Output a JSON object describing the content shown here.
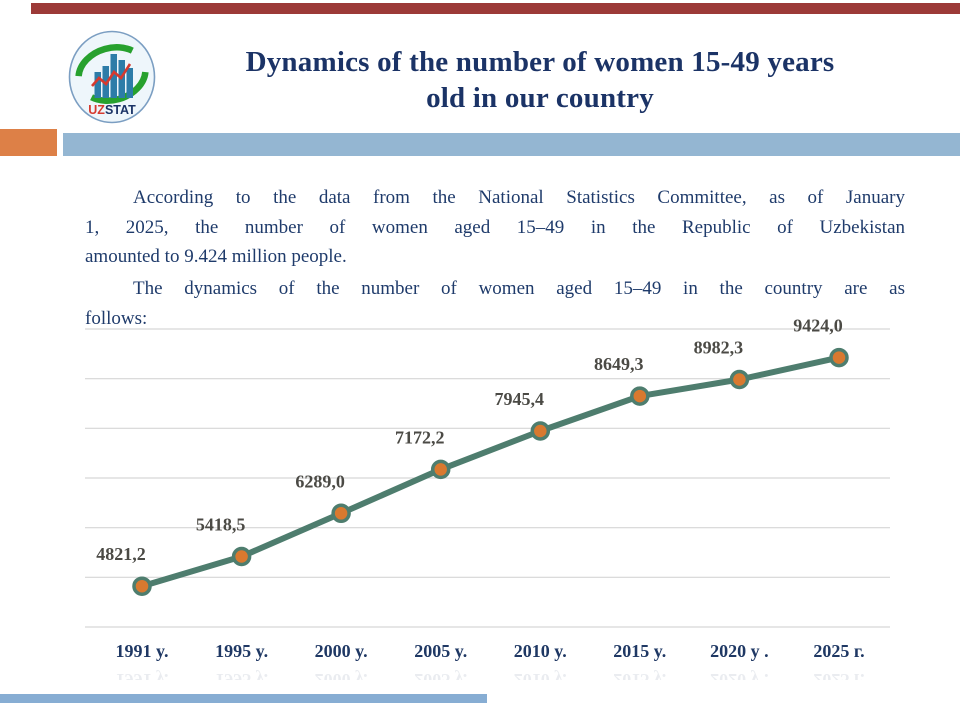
{
  "slide": {
    "title_line1": "Dynamics of the number of women 15-49 years",
    "title_line2": "old in our country",
    "p1_lines": [
      "According to the data from the National Statistics Committee, as of January",
      "1, 2025, the number of women aged 15–49 in the Republic of Uzbekistan",
      "amounted to 9.424 million people."
    ],
    "p2_lines": [
      "The dynamics of the number of women aged 15–49 in the country are as",
      "follows:"
    ]
  },
  "logo": {
    "uz": "UZ",
    "stat": "STAT"
  },
  "colors": {
    "top_bar_red": "#9c3a38",
    "title_navy": "#1b3366",
    "body_navy": "#1f3b6b",
    "orange_accent": "#dd8047",
    "header_bar_blue": "#94b6d2",
    "bottom_bar_blue": "#87add3",
    "grid_gray": "#d6d6d6",
    "data_label_gray": "#4b4a45",
    "axis_label_navy": "#1f3864",
    "logo_green": "#27a12e",
    "logo_bar_blue": "#2d7ca8",
    "logo_red": "#d63a2f"
  },
  "chart_data": {
    "type": "line",
    "title": "",
    "xlabel": "",
    "ylabel": "",
    "categories": [
      "1991 y.",
      "1995 y.",
      "2000 y.",
      "2005 y.",
      "2010 y.",
      "2015 y.",
      "2020 y .",
      "2025 г."
    ],
    "values": [
      4821.2,
      5418.5,
      6289.0,
      7172.2,
      7945.4,
      8649.3,
      8982.3,
      9424.0
    ],
    "labels": [
      "4821,2",
      "5418,5",
      "6289,0",
      "7172,2",
      "7945,4",
      "8649,3",
      "8982,3",
      "9424,0"
    ],
    "ylim": [
      4000,
      10000
    ],
    "gridline_step": 1000,
    "grid": true,
    "legend": "none",
    "line_color": "#4e7d6e",
    "marker_fill": "#d9792f",
    "marker_ring": "#4e7d6e"
  }
}
